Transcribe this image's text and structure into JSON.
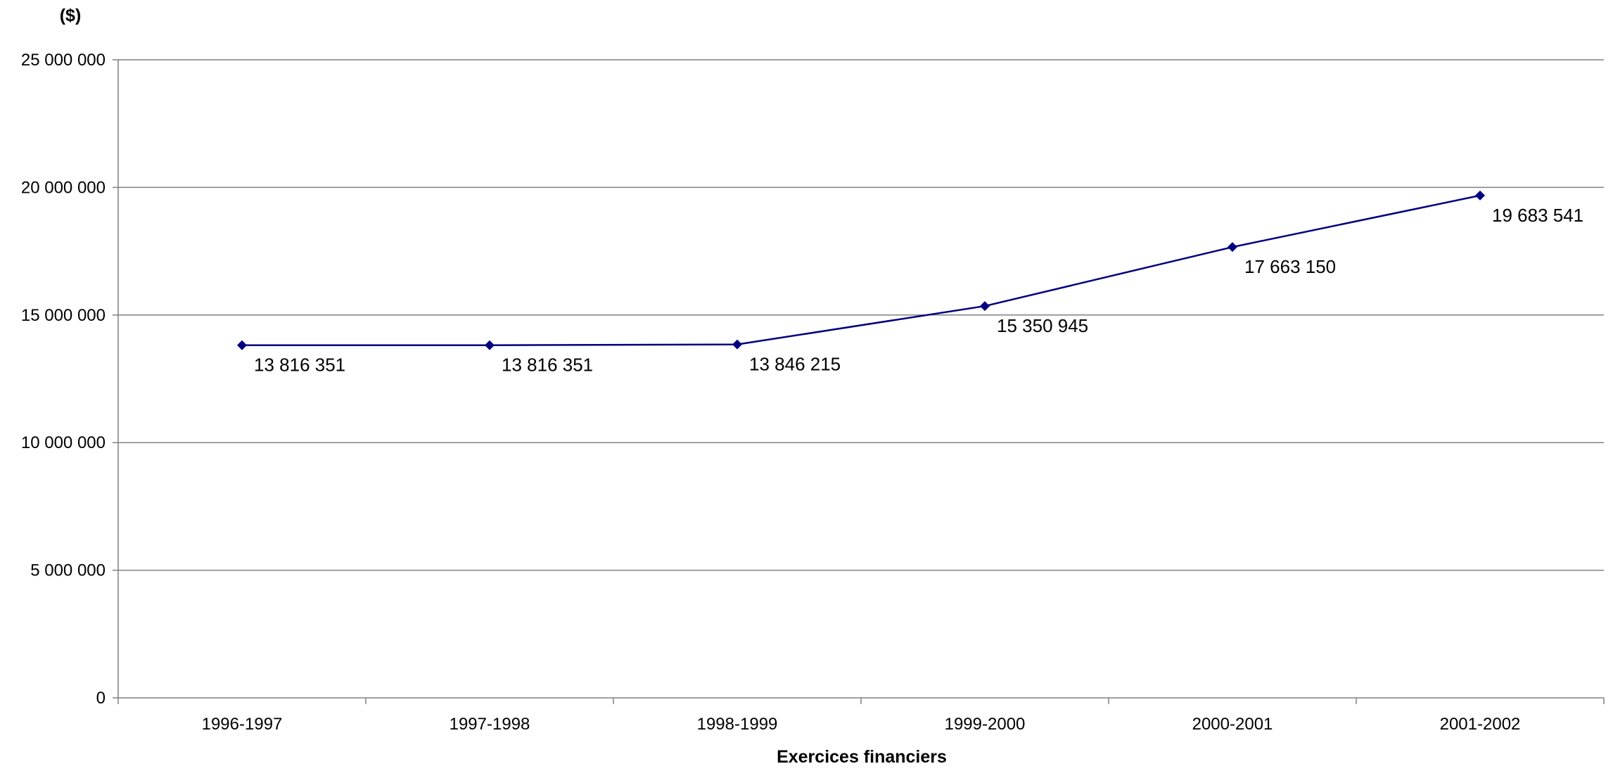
{
  "chart_data": {
    "type": "line",
    "y_unit_label": "($)",
    "xlabel": "Exercices financiers",
    "ylabel": "",
    "categories": [
      "1996-1997",
      "1997-1998",
      "1998-1999",
      "1999-2000",
      "2000-2001",
      "2001-2002"
    ],
    "series": [
      {
        "values": [
          13816351,
          13816351,
          13846215,
          15350945,
          17663150,
          19683541
        ],
        "color": "#000080",
        "marker": "diamond"
      }
    ],
    "data_labels": [
      "13 816 351",
      "13 816 351",
      "13 846 215",
      "15 350 945",
      "17 663 150",
      "19 683 541"
    ],
    "y_ticks": [
      0,
      5000000,
      10000000,
      15000000,
      20000000,
      25000000
    ],
    "y_tick_labels": [
      "0",
      "5 000 000",
      "10 000 000",
      "15 000 000",
      "20 000 000",
      "25 000 000"
    ],
    "ylim": [
      0,
      25000000
    ],
    "grid": true,
    "legend": "none",
    "colors": {
      "line": "#000080",
      "grid": "#808080",
      "axis": "#808080"
    }
  }
}
